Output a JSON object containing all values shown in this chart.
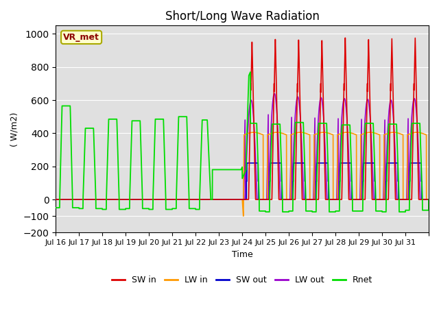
{
  "title": "Short/Long Wave Radiation",
  "xlabel": "Time",
  "ylabel": "( W/m2)",
  "ylim": [
    -200,
    1050
  ],
  "xlim": [
    0,
    16
  ],
  "xtick_labels": [
    "Jul 16",
    "Jul 17",
    "Jul 18",
    "Jul 19",
    "Jul 20",
    "Jul 21",
    "Jul 22",
    "Jul 23",
    "Jul 24",
    "Jul 25",
    "Jul 26",
    "Jul 27",
    "Jul 28",
    "Jul 29",
    "Jul 30",
    "Jul 31"
  ],
  "ytick_values": [
    -200,
    -100,
    0,
    200,
    400,
    600,
    800,
    1000
  ],
  "legend_entries": [
    "SW in",
    "LW in",
    "SW out",
    "LW out",
    "Rnet"
  ],
  "colors": {
    "SW in": "#dd0000",
    "LW in": "#ff9900",
    "SW out": "#0000cc",
    "LW out": "#9900cc",
    "Rnet": "#00dd00"
  },
  "annotation_text": "VR_met",
  "bg_color": "#e0e0e0",
  "title_fontsize": 12
}
